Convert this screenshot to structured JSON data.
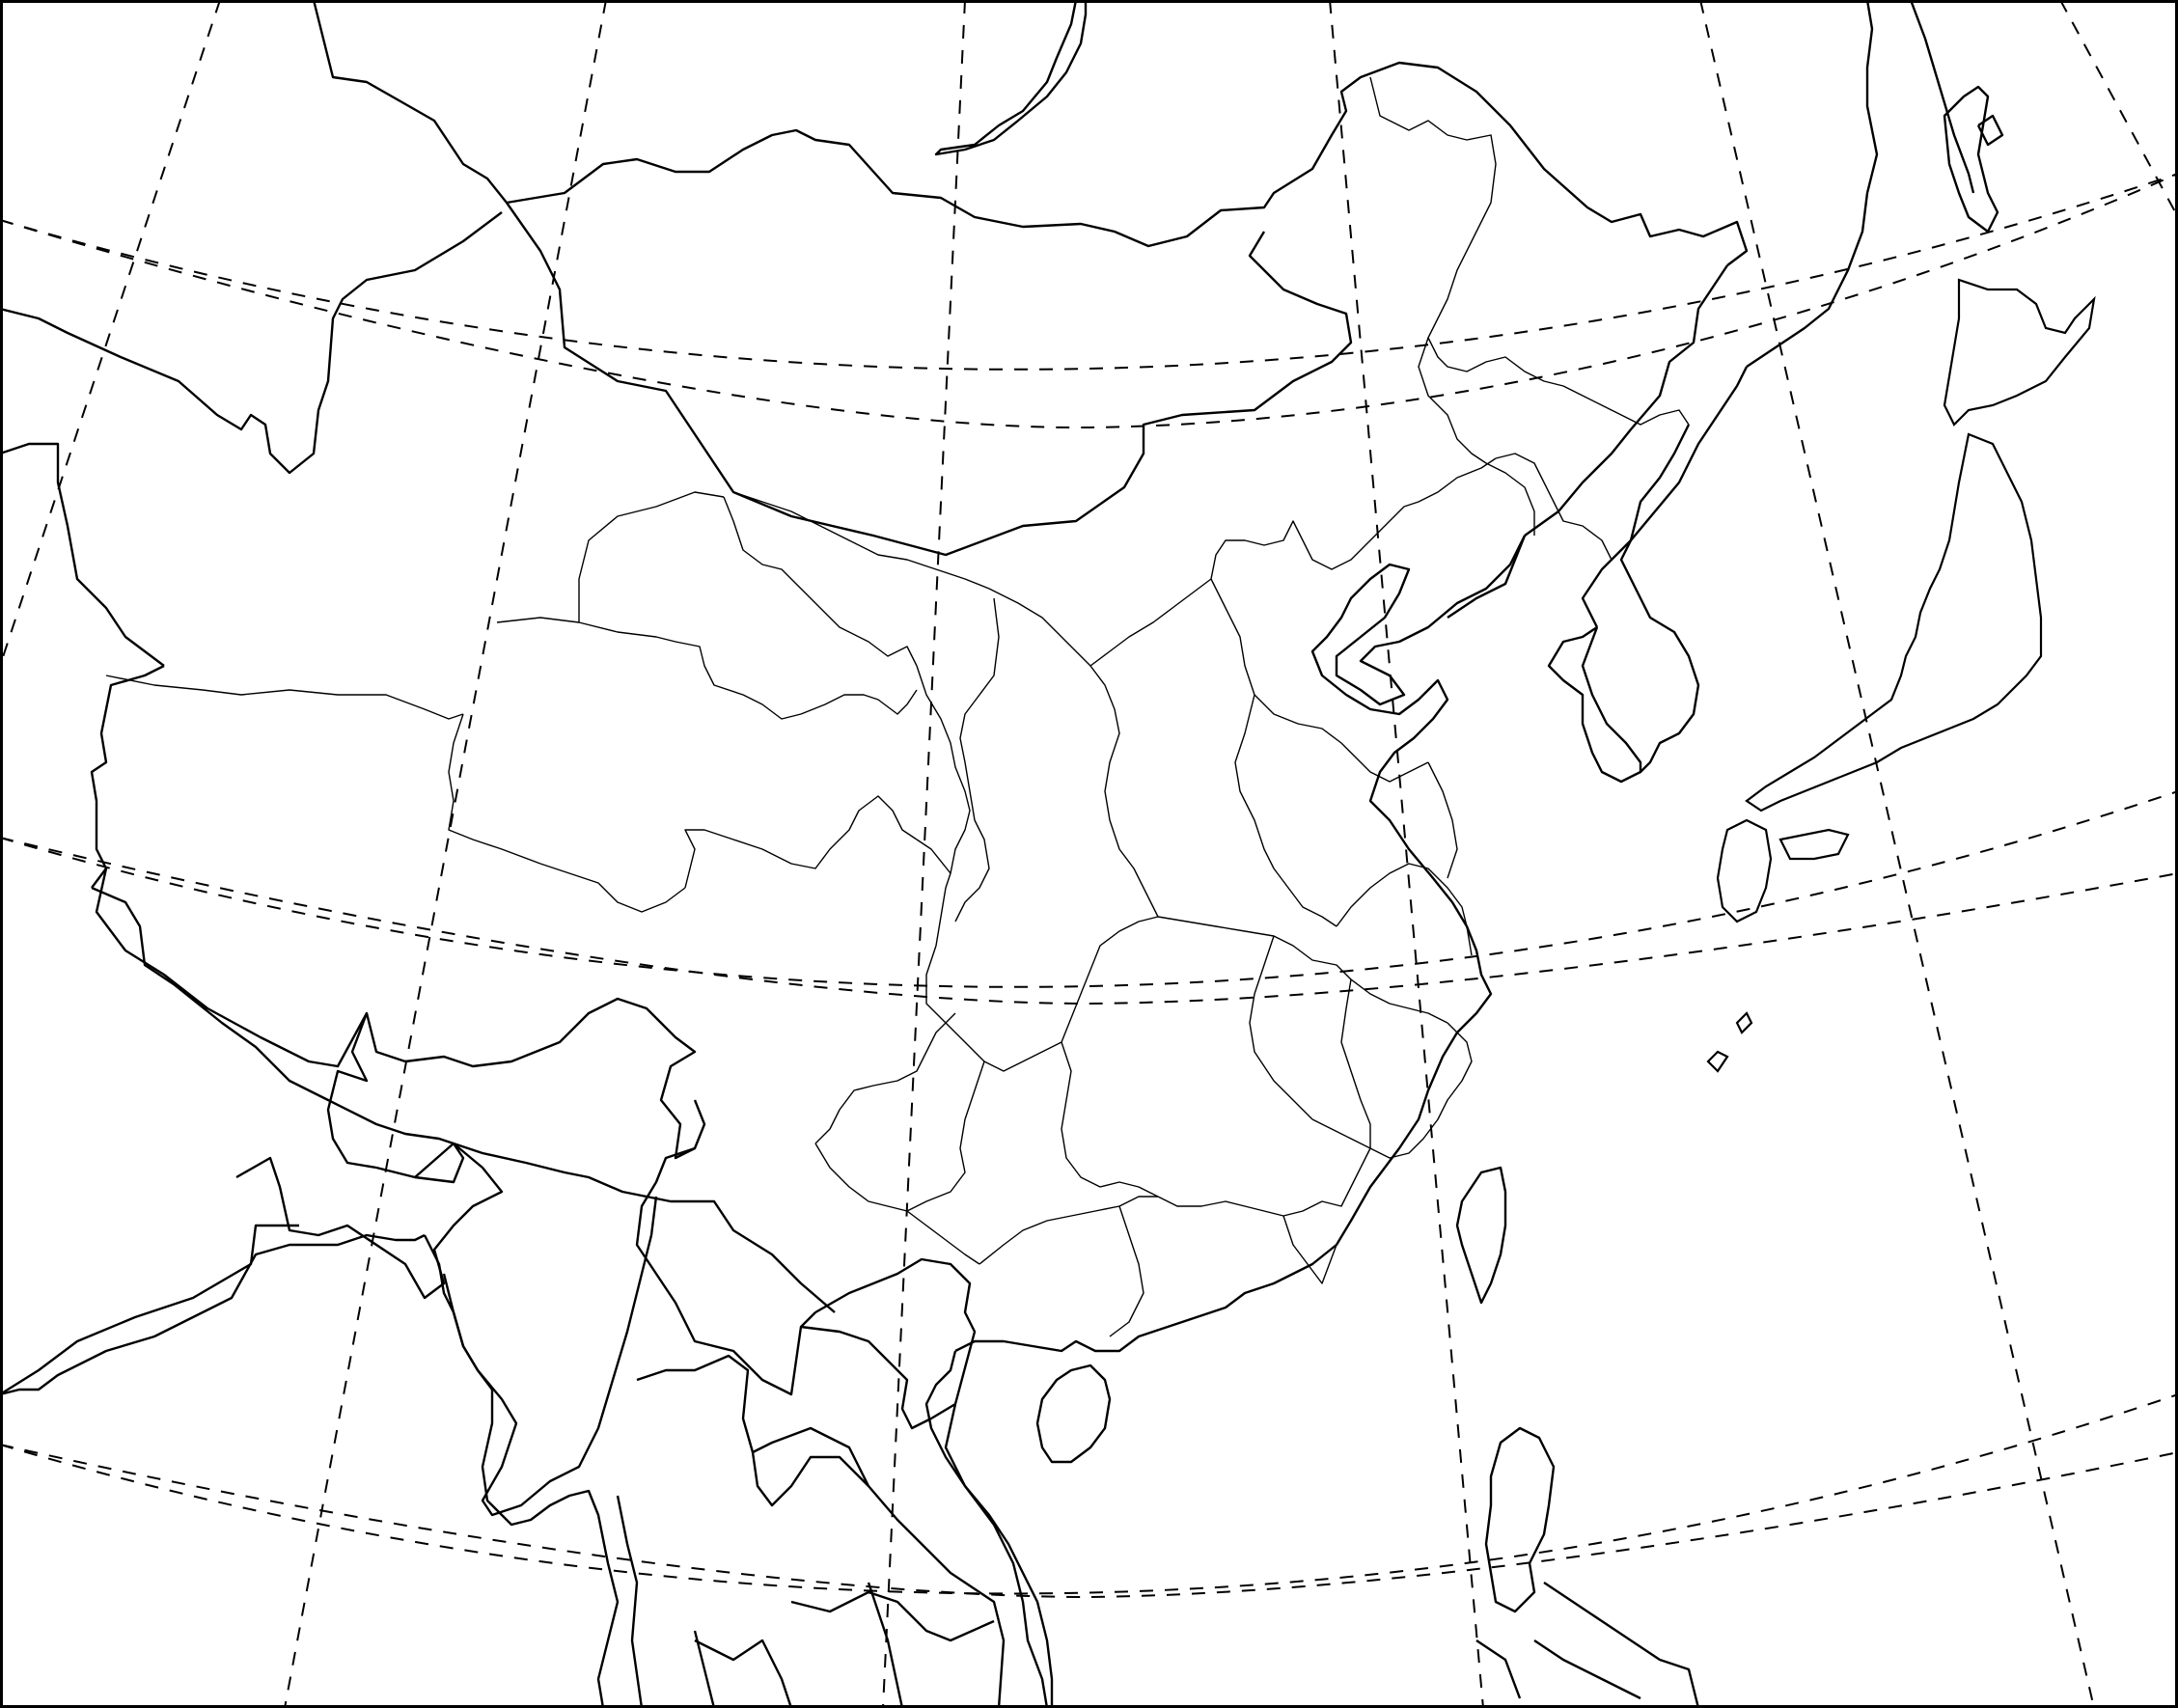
{
  "map": {
    "projection": "conic",
    "region": "East Asia",
    "style": "blank outline map",
    "colors": {
      "line": "#000000",
      "background": "#ffffff"
    },
    "gridlines": {
      "style": "dashed",
      "parallels_count": 5,
      "meridians_count": 7
    }
  }
}
